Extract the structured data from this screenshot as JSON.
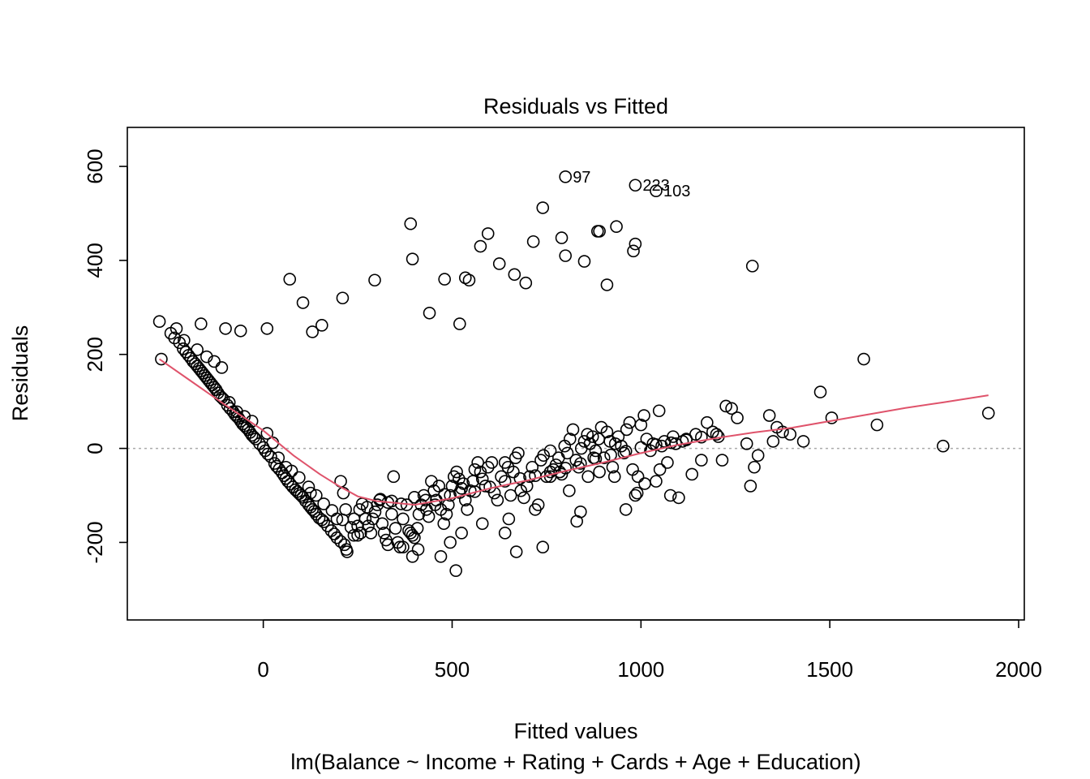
{
  "chart_data": {
    "type": "scatter",
    "title": "Residuals vs Fitted",
    "xlabel": "Fitted values",
    "subtitle": "lm(Balance ~ Income + Rating + Cards + Age + Education)",
    "ylabel": "Residuals",
    "xlim": [
      -360,
      2015
    ],
    "ylim": [
      -365,
      683
    ],
    "xticks": [
      0,
      500,
      1000,
      1500,
      2000
    ],
    "xtick_labels": [
      "0",
      "500",
      "1000",
      "1500",
      "2000"
    ],
    "yticks": [
      -200,
      0,
      200,
      400,
      600
    ],
    "ytick_labels": [
      "-200",
      "0",
      "200",
      "400",
      "600"
    ],
    "reference_line": {
      "y": 0,
      "style": "dotted",
      "color": "#aaaaaa"
    },
    "grid": false,
    "point_color": "#000000",
    "smooth_color": "#df536b",
    "points": [
      [
        -275,
        270
      ],
      [
        -245,
        245
      ],
      [
        -235,
        235
      ],
      [
        -222,
        225
      ],
      [
        -212,
        212
      ],
      [
        -205,
        205
      ],
      [
        -198,
        198
      ],
      [
        -192,
        192
      ],
      [
        -186,
        185
      ],
      [
        -180,
        180
      ],
      [
        -175,
        175
      ],
      [
        -170,
        170
      ],
      [
        -165,
        165
      ],
      [
        -160,
        160
      ],
      [
        -155,
        155
      ],
      [
        -150,
        150
      ],
      [
        -145,
        145
      ],
      [
        -140,
        140
      ],
      [
        -135,
        135
      ],
      [
        -130,
        130
      ],
      [
        -125,
        125
      ],
      [
        -120,
        118
      ],
      [
        -115,
        112
      ],
      [
        -110,
        108
      ],
      [
        -105,
        104
      ],
      [
        -95,
        92
      ],
      [
        -88,
        85
      ],
      [
        -80,
        78
      ],
      [
        -75,
        72
      ],
      [
        -70,
        68
      ],
      [
        -65,
        64
      ],
      [
        -60,
        58
      ],
      [
        -55,
        52
      ],
      [
        -50,
        48
      ],
      [
        -45,
        44
      ],
      [
        -40,
        40
      ],
      [
        -35,
        34
      ],
      [
        -30,
        28
      ],
      [
        -25,
        24
      ],
      [
        -20,
        20
      ],
      [
        -10,
        10
      ],
      [
        0,
        2
      ],
      [
        5,
        -5
      ],
      [
        12,
        -12
      ],
      [
        20,
        -18
      ],
      [
        30,
        -32
      ],
      [
        35,
        -38
      ],
      [
        42,
        -44
      ],
      [
        50,
        -52
      ],
      [
        55,
        -58
      ],
      [
        60,
        -64
      ],
      [
        65,
        -70
      ],
      [
        72,
        -76
      ],
      [
        78,
        -82
      ],
      [
        85,
        -88
      ],
      [
        90,
        -92
      ],
      [
        95,
        -96
      ],
      [
        100,
        -100
      ],
      [
        105,
        -104
      ],
      [
        112,
        -112
      ],
      [
        120,
        -120
      ],
      [
        125,
        -125
      ],
      [
        130,
        -130
      ],
      [
        135,
        -134
      ],
      [
        140,
        -140
      ],
      [
        148,
        -148
      ],
      [
        155,
        -152
      ],
      [
        160,
        -156
      ],
      [
        170,
        -165
      ],
      [
        180,
        -175
      ],
      [
        188,
        -182
      ],
      [
        195,
        -190
      ],
      [
        205,
        -198
      ],
      [
        215,
        -205
      ],
      [
        125,
        -95
      ],
      [
        195,
        -150
      ],
      [
        205,
        -70
      ],
      [
        212,
        -95
      ],
      [
        218,
        -130
      ],
      [
        222,
        -220
      ],
      [
        240,
        -150
      ],
      [
        250,
        -165
      ],
      [
        258,
        -180
      ],
      [
        262,
        -118
      ],
      [
        270,
        -150
      ],
      [
        278,
        -165
      ],
      [
        285,
        -180
      ],
      [
        290,
        -150
      ],
      [
        296,
        -135
      ],
      [
        302,
        -120
      ],
      [
        308,
        -110
      ],
      [
        315,
        -160
      ],
      [
        320,
        -180
      ],
      [
        325,
        -195
      ],
      [
        330,
        -205
      ],
      [
        340,
        -140
      ],
      [
        350,
        -170
      ],
      [
        356,
        -200
      ],
      [
        362,
        -210
      ],
      [
        370,
        -150
      ],
      [
        380,
        -120
      ],
      [
        385,
        -175
      ],
      [
        390,
        -180
      ],
      [
        395,
        -185
      ],
      [
        400,
        -190
      ],
      [
        408,
        -170
      ],
      [
        412,
        -140
      ],
      [
        418,
        -120
      ],
      [
        425,
        -100
      ],
      [
        432,
        -130
      ],
      [
        438,
        -145
      ],
      [
        445,
        -70
      ],
      [
        452,
        -90
      ],
      [
        458,
        -110
      ],
      [
        465,
        -80
      ],
      [
        470,
        -130
      ],
      [
        478,
        -160
      ],
      [
        485,
        -140
      ],
      [
        490,
        -120
      ],
      [
        495,
        -100
      ],
      [
        500,
        -80
      ],
      [
        505,
        -60
      ],
      [
        512,
        -50
      ],
      [
        518,
        -65
      ],
      [
        525,
        -85
      ],
      [
        530,
        -75
      ],
      [
        535,
        -110
      ],
      [
        540,
        -130
      ],
      [
        548,
        -90
      ],
      [
        555,
        -70
      ],
      [
        560,
        -45
      ],
      [
        568,
        -30
      ],
      [
        575,
        -50
      ],
      [
        580,
        -65
      ],
      [
        588,
        -80
      ],
      [
        595,
        -40
      ],
      [
        605,
        -30
      ],
      [
        612,
        -95
      ],
      [
        620,
        -110
      ],
      [
        630,
        -60
      ],
      [
        640,
        -30
      ],
      [
        648,
        -40
      ],
      [
        655,
        -100
      ],
      [
        662,
        -50
      ],
      [
        668,
        -20
      ],
      [
        675,
        -10
      ],
      [
        682,
        -90
      ],
      [
        690,
        -105
      ],
      [
        698,
        -80
      ],
      [
        705,
        -60
      ],
      [
        712,
        -40
      ],
      [
        720,
        -130
      ],
      [
        728,
        -120
      ],
      [
        735,
        -25
      ],
      [
        742,
        -15
      ],
      [
        750,
        -60
      ],
      [
        760,
        -5
      ],
      [
        768,
        -45
      ],
      [
        775,
        -35
      ],
      [
        782,
        -20
      ],
      [
        790,
        -55
      ],
      [
        798,
        5
      ],
      [
        805,
        -10
      ],
      [
        812,
        20
      ],
      [
        820,
        40
      ],
      [
        828,
        -25
      ],
      [
        835,
        -40
      ],
      [
        842,
        0
      ],
      [
        850,
        15
      ],
      [
        858,
        30
      ],
      [
        865,
        10
      ],
      [
        872,
        25
      ],
      [
        880,
        -5
      ],
      [
        888,
        20
      ],
      [
        895,
        45
      ],
      [
        902,
        -20
      ],
      [
        910,
        35
      ],
      [
        918,
        15
      ],
      [
        925,
        -40
      ],
      [
        932,
        10
      ],
      [
        940,
        25
      ],
      [
        948,
        5
      ],
      [
        955,
        -10
      ],
      [
        962,
        40
      ],
      [
        970,
        55
      ],
      [
        978,
        -45
      ],
      [
        985,
        -100
      ],
      [
        992,
        -60
      ],
      [
        1000,
        50
      ],
      [
        1008,
        70
      ],
      [
        1015,
        20
      ],
      [
        1025,
        -5
      ],
      [
        1032,
        10
      ],
      [
        1040,
        -70
      ],
      [
        1048,
        80
      ],
      [
        1055,
        5
      ],
      [
        1062,
        15
      ],
      [
        1070,
        -30
      ],
      [
        1078,
        -100
      ],
      [
        1085,
        25
      ],
      [
        1092,
        10
      ],
      [
        1100,
        -105
      ],
      [
        1110,
        15
      ],
      [
        1120,
        20
      ],
      [
        1135,
        -55
      ],
      [
        1145,
        30
      ],
      [
        1160,
        -25
      ],
      [
        1175,
        55
      ],
      [
        1190,
        35
      ],
      [
        1205,
        25
      ],
      [
        1215,
        -25
      ],
      [
        1225,
        90
      ],
      [
        1240,
        85
      ],
      [
        1255,
        65
      ],
      [
        1280,
        10
      ],
      [
        1290,
        -80
      ],
      [
        1300,
        -40
      ],
      [
        1310,
        -15
      ],
      [
        1340,
        70
      ],
      [
        1350,
        15
      ],
      [
        1360,
        45
      ],
      [
        1375,
        35
      ],
      [
        1395,
        30
      ],
      [
        1430,
        15
      ],
      [
        1475,
        120
      ],
      [
        1505,
        65
      ],
      [
        1590,
        190
      ],
      [
        1625,
        50
      ],
      [
        1800,
        5
      ],
      [
        1920,
        75
      ],
      [
        220,
        -215
      ],
      [
        240,
        -185
      ],
      [
        250,
        -185
      ],
      [
        330,
        -115
      ],
      [
        345,
        -60
      ],
      [
        370,
        -210
      ],
      [
        395,
        -230
      ],
      [
        410,
        -215
      ],
      [
        470,
        -230
      ],
      [
        495,
        -200
      ],
      [
        510,
        -260
      ],
      [
        525,
        -180
      ],
      [
        580,
        -160
      ],
      [
        640,
        -180
      ],
      [
        650,
        -150
      ],
      [
        670,
        -220
      ],
      [
        740,
        -210
      ],
      [
        760,
        -60
      ],
      [
        785,
        -50
      ],
      [
        810,
        -90
      ],
      [
        830,
        -155
      ],
      [
        840,
        -135
      ],
      [
        860,
        -60
      ],
      [
        875,
        -20
      ],
      [
        890,
        -50
      ],
      [
        930,
        -60
      ],
      [
        960,
        -130
      ],
      [
        990,
        -95
      ],
      [
        1010,
        -75
      ],
      [
        1050,
        -45
      ],
      [
        -270,
        190
      ],
      [
        -230,
        255
      ],
      [
        -210,
        230
      ],
      [
        -175,
        210
      ],
      [
        -150,
        195
      ],
      [
        -130,
        185
      ],
      [
        -110,
        172
      ],
      [
        -70,
        78
      ],
      [
        -90,
        98
      ],
      [
        -50,
        68
      ],
      [
        -30,
        58
      ],
      [
        10,
        32
      ],
      [
        25,
        12
      ],
      [
        40,
        -20
      ],
      [
        60,
        -40
      ],
      [
        75,
        -48
      ],
      [
        95,
        -62
      ],
      [
        120,
        -82
      ],
      [
        140,
        -100
      ],
      [
        160,
        -118
      ],
      [
        182,
        -132
      ],
      [
        210,
        -152
      ],
      [
        232,
        -168
      ],
      [
        255,
        -130
      ],
      [
        275,
        -125
      ],
      [
        310,
        -108
      ],
      [
        340,
        -112
      ],
      [
        365,
        -118
      ],
      [
        400,
        -104
      ],
      [
        430,
        -110
      ],
      [
        455,
        -120
      ],
      [
        480,
        -98
      ],
      [
        520,
        -94
      ],
      [
        560,
        -92
      ],
      [
        600,
        -82
      ],
      [
        640,
        -70
      ],
      [
        680,
        -64
      ],
      [
        720,
        -58
      ],
      [
        760,
        -50
      ],
      [
        800,
        -42
      ],
      [
        840,
        -32
      ],
      [
        880,
        -22
      ],
      [
        920,
        -14
      ],
      [
        960,
        -6
      ],
      [
        1000,
        2
      ],
      [
        1040,
        8
      ],
      [
        1080,
        12
      ],
      [
        1120,
        18
      ],
      [
        1160,
        24
      ],
      [
        1200,
        30
      ],
      [
        -165,
        265
      ],
      [
        -100,
        255
      ],
      [
        -60,
        250
      ],
      [
        10,
        255
      ],
      [
        70,
        360
      ],
      [
        105,
        310
      ],
      [
        130,
        248
      ],
      [
        155,
        262
      ],
      [
        210,
        320
      ],
      [
        295,
        358
      ],
      [
        390,
        478
      ],
      [
        395,
        403
      ],
      [
        440,
        288
      ],
      [
        480,
        360
      ],
      [
        520,
        265
      ],
      [
        535,
        363
      ],
      [
        545,
        358
      ],
      [
        575,
        430
      ],
      [
        595,
        457
      ],
      [
        625,
        393
      ],
      [
        665,
        370
      ],
      [
        695,
        352
      ],
      [
        715,
        440
      ],
      [
        740,
        512
      ],
      [
        790,
        448
      ],
      [
        800,
        410
      ],
      [
        850,
        398
      ],
      [
        885,
        462
      ],
      [
        890,
        462
      ],
      [
        935,
        472
      ],
      [
        910,
        348
      ],
      [
        980,
        420
      ],
      [
        985,
        435
      ],
      [
        1295,
        388
      ],
      [
        800,
        578
      ],
      [
        985,
        560
      ],
      [
        1040,
        548
      ]
    ],
    "labeled_points": [
      {
        "label": "97",
        "x": 800,
        "y": 578
      },
      {
        "label": "223",
        "x": 985,
        "y": 560
      },
      {
        "label": "103",
        "x": 1040,
        "y": 548
      }
    ],
    "smooth_line": [
      [
        -275,
        190
      ],
      [
        -200,
        148
      ],
      [
        -100,
        92
      ],
      [
        0,
        38
      ],
      [
        80,
        -15
      ],
      [
        150,
        -55
      ],
      [
        200,
        -80
      ],
      [
        250,
        -102
      ],
      [
        300,
        -112
      ],
      [
        400,
        -120
      ],
      [
        500,
        -106
      ],
      [
        600,
        -85
      ],
      [
        700,
        -68
      ],
      [
        800,
        -48
      ],
      [
        900,
        -30
      ],
      [
        1000,
        -10
      ],
      [
        1100,
        8
      ],
      [
        1200,
        22
      ],
      [
        1300,
        34
      ],
      [
        1400,
        44
      ],
      [
        1500,
        58
      ],
      [
        1600,
        72
      ],
      [
        1700,
        86
      ],
      [
        1800,
        98
      ],
      [
        1920,
        113
      ]
    ]
  }
}
